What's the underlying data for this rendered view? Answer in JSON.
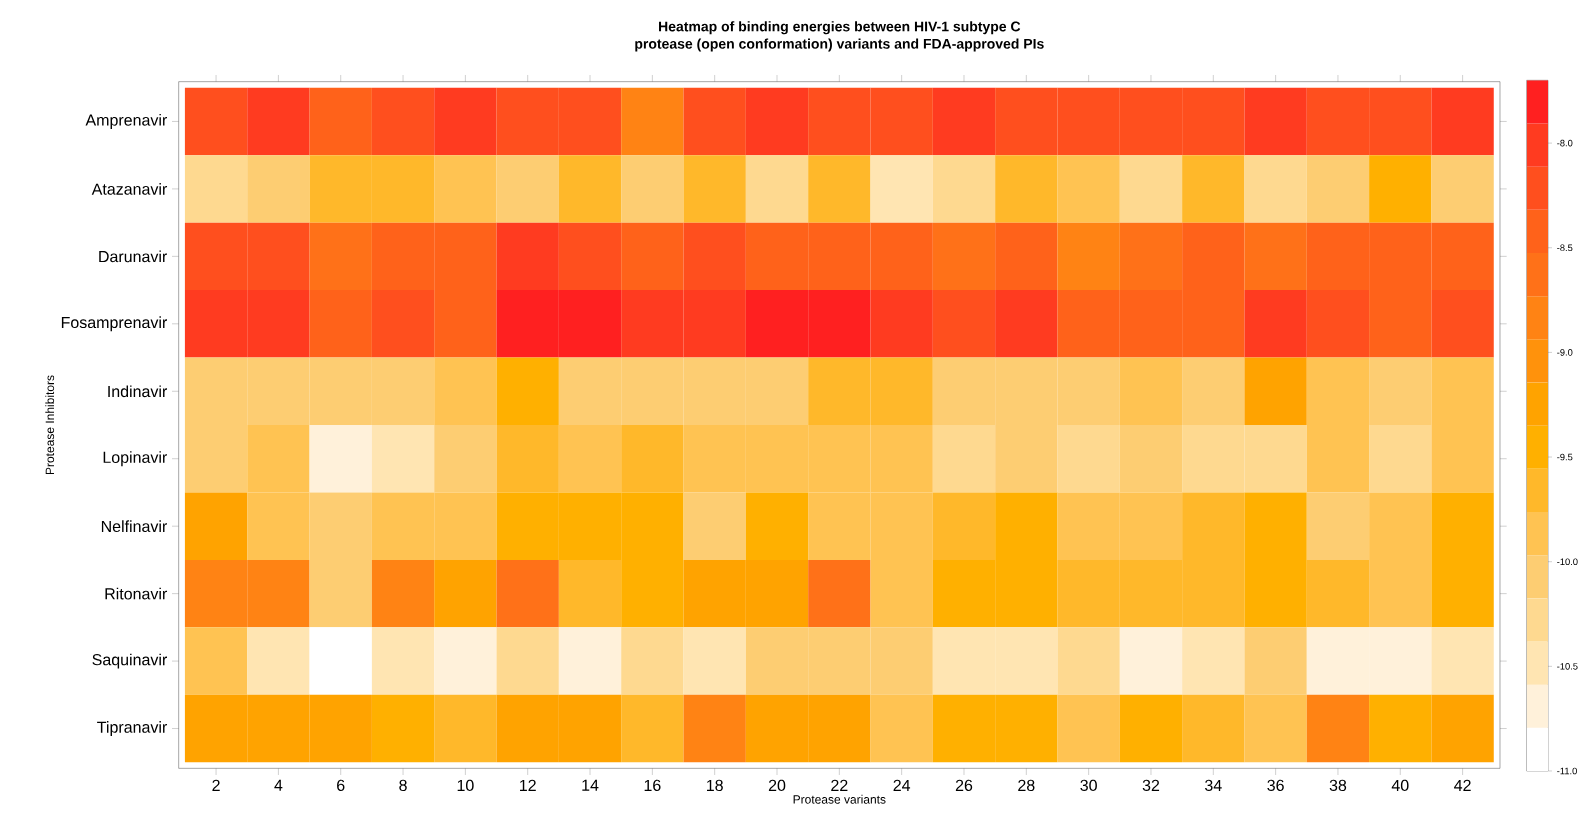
{
  "chart_data": {
    "type": "heatmap",
    "title": "Heatmap of binding energies between HIV-1 subtype C",
    "subtitle": "protease (open conformation) variants and FDA-approved PIs",
    "xlabel": "Protease variants",
    "ylabel": "Protease Inhibitors",
    "categories": [
      "2",
      "4",
      "6",
      "8",
      "10",
      "12",
      "14",
      "16",
      "18",
      "20",
      "22",
      "24",
      "26",
      "28",
      "30",
      "32",
      "34",
      "36",
      "38",
      "40",
      "42"
    ],
    "y_categories": [
      "Amprenavir",
      "Atazanavir",
      "Darunavir",
      "Fosamprenavir",
      "Indinavir",
      "Lopinavir",
      "Nelfinavir",
      "Ritonavir",
      "Saquinavir",
      "Tipranavir"
    ],
    "cells": [
      [
        -8.2,
        -8.0,
        -8.4,
        -8.2,
        -8.0,
        -8.2,
        -8.2,
        -8.8,
        -8.2,
        -8.0,
        -8.2,
        -8.2,
        -8.0,
        -8.2,
        -8.2,
        -8.2,
        -8.2,
        -8.0,
        -8.2,
        -8.2,
        -8.0
      ],
      [
        -10.3,
        -10.1,
        -9.7,
        -9.7,
        -9.9,
        -10.1,
        -9.7,
        -10.1,
        -9.7,
        -10.3,
        -9.7,
        -10.5,
        -10.3,
        -9.7,
        -9.9,
        -10.3,
        -9.7,
        -10.3,
        -10.1,
        -9.5,
        -10.1
      ],
      [
        -8.2,
        -8.2,
        -8.6,
        -8.4,
        -8.4,
        -8.0,
        -8.2,
        -8.4,
        -8.2,
        -8.4,
        -8.4,
        -8.4,
        -8.6,
        -8.4,
        -8.8,
        -8.6,
        -8.4,
        -8.6,
        -8.4,
        -8.4,
        -8.4
      ],
      [
        -8.0,
        -8.0,
        -8.4,
        -8.2,
        -8.4,
        -7.8,
        -7.8,
        -8.0,
        -8.0,
        -7.8,
        -7.8,
        -8.0,
        -8.2,
        -8.0,
        -8.4,
        -8.4,
        -8.4,
        -8.0,
        -8.2,
        -8.4,
        -8.2
      ],
      [
        -10.1,
        -10.1,
        -10.1,
        -10.1,
        -9.9,
        -9.5,
        -10.1,
        -10.1,
        -10.1,
        -10.1,
        -9.7,
        -9.7,
        -10.1,
        -10.1,
        -10.1,
        -9.9,
        -10.1,
        -9.3,
        -9.9,
        -10.1,
        -9.9
      ],
      [
        -10.1,
        -9.9,
        -10.7,
        -10.5,
        -10.1,
        -9.7,
        -9.9,
        -9.7,
        -9.9,
        -9.9,
        -9.9,
        -9.9,
        -10.3,
        -10.1,
        -10.3,
        -10.1,
        -10.3,
        -10.3,
        -9.9,
        -10.3,
        -9.9
      ],
      [
        -9.3,
        -9.9,
        -10.1,
        -9.9,
        -9.9,
        -9.5,
        -9.5,
        -9.5,
        -10.1,
        -9.5,
        -9.9,
        -9.9,
        -9.7,
        -9.5,
        -9.9,
        -9.9,
        -9.7,
        -9.5,
        -10.1,
        -9.9,
        -9.5
      ],
      [
        -8.8,
        -8.8,
        -10.1,
        -8.8,
        -9.3,
        -8.6,
        -9.7,
        -9.5,
        -9.3,
        -9.3,
        -8.6,
        -9.9,
        -9.5,
        -9.5,
        -9.7,
        -9.7,
        -9.7,
        -9.5,
        -9.7,
        -9.9,
        -9.5
      ],
      [
        -9.9,
        -10.5,
        -10.9,
        -10.5,
        -10.7,
        -10.3,
        -10.7,
        -10.3,
        -10.5,
        -10.1,
        -10.1,
        -10.1,
        -10.5,
        -10.5,
        -10.3,
        -10.7,
        -10.5,
        -10.1,
        -10.7,
        -10.7,
        -10.5
      ],
      [
        -9.3,
        -9.3,
        -9.3,
        -9.5,
        -9.7,
        -9.3,
        -9.3,
        -9.7,
        -8.8,
        -9.3,
        -9.3,
        -9.9,
        -9.5,
        -9.5,
        -9.9,
        -9.5,
        -9.7,
        -9.9,
        -8.8,
        -9.5,
        -9.3
      ]
    ],
    "clim": [
      -11.0,
      -7.7
    ],
    "cticks": [
      {
        "value": -8.0,
        "label": "-8.0"
      },
      {
        "value": -8.5,
        "label": "-8.5"
      },
      {
        "value": -9.0,
        "label": "-9.0"
      },
      {
        "value": -9.5,
        "label": "-9.5"
      },
      {
        "value": -10.0,
        "label": "-10.0"
      },
      {
        "value": -10.5,
        "label": "-10.5"
      },
      {
        "value": -11.0,
        "label": "-11.0"
      }
    ]
  }
}
